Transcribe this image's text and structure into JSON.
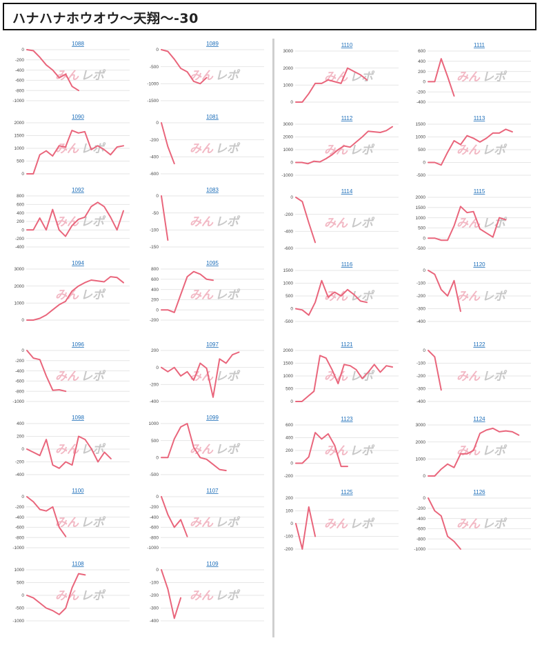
{
  "page": {
    "title": "ハナハナホウオウ〜天翔〜-30"
  },
  "watermark": {
    "part1": "みん",
    "part2": "レポ"
  },
  "colors": {
    "series": "#e9657b",
    "link": "#1a6cb8",
    "grid": "#e6e6e6"
  },
  "chart_data": [
    {
      "type": "line",
      "title": "1088",
      "ticks": [
        0,
        -200,
        -400,
        -600,
        -800,
        -1000
      ],
      "ylim": [
        -1000,
        0
      ],
      "values": [
        0,
        -20,
        -150,
        -300,
        -400,
        -550,
        -480,
        -720,
        -800
      ]
    },
    {
      "type": "line",
      "title": "1089",
      "ticks": [
        0,
        -500,
        -1000,
        -1500
      ],
      "ylim": [
        -1500,
        0
      ],
      "values": [
        0,
        -50,
        -280,
        -550,
        -650,
        -930,
        -1000,
        -820
      ]
    },
    {
      "type": "line",
      "title": "1090",
      "ticks": [
        2000,
        1500,
        1000,
        500,
        0
      ],
      "ylim": [
        0,
        2000
      ],
      "values": [
        0,
        0,
        750,
        900,
        700,
        1100,
        1050,
        1700,
        1600,
        1650,
        950,
        1100,
        950,
        750,
        1050,
        1100
      ]
    },
    {
      "type": "line",
      "title": "1081",
      "ticks": [
        0,
        -200,
        -400,
        -600
      ],
      "ylim": [
        -600,
        0
      ],
      "values": [
        0,
        -280,
        -480
      ]
    },
    {
      "type": "line",
      "title": "1092",
      "ticks": [
        800,
        600,
        400,
        200,
        0,
        -200,
        -400
      ],
      "ylim": [
        -400,
        800
      ],
      "values": [
        0,
        0,
        280,
        0,
        480,
        0,
        -150,
        100,
        250,
        300,
        550,
        650,
        550,
        300,
        0,
        450
      ]
    },
    {
      "type": "line",
      "title": "1083",
      "ticks": [
        0,
        -50,
        -100,
        -150
      ],
      "ylim": [
        -150,
        0
      ],
      "values": [
        0,
        -130
      ]
    },
    {
      "type": "line",
      "title": "1094",
      "ticks": [
        3000,
        2000,
        1000,
        0
      ],
      "ylim": [
        0,
        3000
      ],
      "values": [
        0,
        0,
        100,
        300,
        600,
        900,
        1100,
        1700,
        2000,
        2200,
        2350,
        2300,
        2250,
        2550,
        2500,
        2200
      ]
    },
    {
      "type": "line",
      "title": "1095",
      "ticks": [
        800,
        600,
        400,
        200,
        0,
        -200
      ],
      "ylim": [
        -200,
        800
      ],
      "values": [
        0,
        0,
        -50,
        300,
        650,
        750,
        700,
        600,
        580
      ]
    },
    {
      "type": "line",
      "title": "1096",
      "ticks": [
        0,
        -200,
        -400,
        -600,
        -800,
        -1000
      ],
      "ylim": [
        -1000,
        0
      ],
      "values": [
        0,
        -150,
        -180,
        -500,
        -780,
        -770,
        -800
      ]
    },
    {
      "type": "line",
      "title": "1097",
      "ticks": [
        200,
        0,
        -200,
        -400
      ],
      "ylim": [
        -400,
        200
      ],
      "values": [
        0,
        -50,
        0,
        -100,
        -50,
        -150,
        50,
        -10,
        -350,
        100,
        50,
        150,
        180
      ]
    },
    {
      "type": "line",
      "title": "1098",
      "ticks": [
        400,
        200,
        0,
        -200,
        -400
      ],
      "ylim": [
        -400,
        400
      ],
      "values": [
        0,
        -50,
        -100,
        150,
        -250,
        -300,
        -200,
        -250,
        200,
        150,
        0,
        -200,
        -50,
        -150
      ]
    },
    {
      "type": "line",
      "title": "1099",
      "ticks": [
        1000,
        500,
        0,
        -500
      ],
      "ylim": [
        -500,
        1000
      ],
      "values": [
        0,
        0,
        550,
        900,
        1000,
        300,
        0,
        -50,
        -200,
        -350,
        -380
      ]
    },
    {
      "type": "line",
      "title": "1100",
      "ticks": [
        0,
        -200,
        -400,
        -600,
        -800,
        -1000
      ],
      "ylim": [
        -1000,
        0
      ],
      "values": [
        0,
        -100,
        -250,
        -280,
        -200,
        -600,
        -780
      ]
    },
    {
      "type": "line",
      "title": "1107",
      "ticks": [
        0,
        -200,
        -400,
        -600,
        -800,
        -1000
      ],
      "ylim": [
        -1000,
        0
      ],
      "values": [
        0,
        -350,
        -600,
        -450,
        -780
      ]
    },
    {
      "type": "line",
      "title": "1108",
      "ticks": [
        1000,
        500,
        0,
        -500,
        -1000
      ],
      "ylim": [
        -1000,
        1000
      ],
      "values": [
        0,
        -100,
        -300,
        -500,
        -600,
        -750,
        -500,
        300,
        850,
        800
      ]
    },
    {
      "type": "line",
      "title": "1109",
      "ticks": [
        0,
        -100,
        -200,
        -300,
        -400
      ],
      "ylim": [
        -400,
        0
      ],
      "values": [
        0,
        -150,
        -380,
        -220
      ]
    },
    {
      "type": "line",
      "title": "1110",
      "ticks": [
        3000,
        2000,
        1000,
        0
      ],
      "ylim": [
        0,
        3000
      ],
      "values": [
        0,
        0,
        500,
        1100,
        1100,
        1300,
        1200,
        1100,
        2000,
        1800,
        1600,
        1300
      ]
    },
    {
      "type": "line",
      "title": "1111",
      "ticks": [
        600,
        400,
        200,
        0,
        -200,
        -400
      ],
      "ylim": [
        -400,
        600
      ],
      "values": [
        0,
        0,
        450,
        100,
        -280
      ]
    },
    {
      "type": "line",
      "title": "1112",
      "ticks": [
        3000,
        2000,
        1000,
        0,
        -1000
      ],
      "ylim": [
        -1000,
        3000
      ],
      "values": [
        0,
        0,
        -100,
        100,
        50,
        300,
        600,
        1000,
        1300,
        1200,
        1600,
        2000,
        2450,
        2400,
        2350,
        2500,
        2800
      ]
    },
    {
      "type": "line",
      "title": "1113",
      "ticks": [
        1500,
        1000,
        500,
        0,
        -500
      ],
      "ylim": [
        -500,
        1500
      ],
      "values": [
        0,
        0,
        -100,
        400,
        850,
        700,
        1050,
        950,
        800,
        950,
        1150,
        1150,
        1300,
        1200
      ]
    },
    {
      "type": "line",
      "title": "1114",
      "ticks": [
        0,
        -200,
        -400,
        -600
      ],
      "ylim": [
        -600,
        0
      ],
      "values": [
        0,
        -50,
        -300,
        -530
      ]
    },
    {
      "type": "line",
      "title": "1115",
      "ticks": [
        2000,
        1500,
        1000,
        500,
        0,
        -500
      ],
      "ylim": [
        -500,
        2000
      ],
      "values": [
        0,
        0,
        -100,
        -100,
        600,
        1550,
        1250,
        1300,
        450,
        250,
        50,
        1000,
        900
      ]
    },
    {
      "type": "line",
      "title": "1116",
      "ticks": [
        1500,
        1000,
        500,
        0,
        -500
      ],
      "ylim": [
        -500,
        1500
      ],
      "values": [
        0,
        -50,
        -250,
        250,
        1100,
        450,
        650,
        500,
        750,
        550,
        300,
        250
      ]
    },
    {
      "type": "line",
      "title": "1120",
      "ticks": [
        0,
        -100,
        -200,
        -300,
        -400
      ],
      "ylim": [
        -400,
        0
      ],
      "values": [
        0,
        -30,
        -150,
        -200,
        -80,
        -320
      ]
    },
    {
      "type": "line",
      "title": "1121",
      "ticks": [
        2000,
        1500,
        1000,
        500,
        0
      ],
      "ylim": [
        0,
        2000
      ],
      "values": [
        0,
        0,
        200,
        400,
        1800,
        1700,
        1250,
        700,
        1450,
        1400,
        1250,
        900,
        1150,
        1450,
        1150,
        1400,
        1350
      ]
    },
    {
      "type": "line",
      "title": "1122",
      "ticks": [
        0,
        -100,
        -200,
        -300,
        -400
      ],
      "ylim": [
        -400,
        0
      ],
      "values": [
        0,
        -50,
        -310
      ]
    },
    {
      "type": "line",
      "title": "1123",
      "ticks": [
        600,
        400,
        200,
        0,
        -200
      ],
      "ylim": [
        -200,
        600
      ],
      "values": [
        0,
        0,
        100,
        480,
        380,
        460,
        280,
        -50,
        -50
      ]
    },
    {
      "type": "line",
      "title": "1124",
      "ticks": [
        3000,
        2000,
        1000,
        0
      ],
      "ylim": [
        0,
        3000
      ],
      "values": [
        0,
        0,
        400,
        700,
        500,
        1300,
        1300,
        1500,
        2500,
        2700,
        2800,
        2600,
        2650,
        2600,
        2400
      ]
    },
    {
      "type": "line",
      "title": "1125",
      "ticks": [
        200,
        100,
        0,
        -100,
        -200
      ],
      "ylim": [
        -200,
        200
      ],
      "values": [
        0,
        -200,
        130,
        -100
      ]
    },
    {
      "type": "line",
      "title": "1126",
      "ticks": [
        0,
        -200,
        -400,
        -600,
        -800,
        -1000
      ],
      "ylim": [
        -1000,
        0
      ],
      "values": [
        0,
        -250,
        -350,
        -750,
        -850,
        -1000
      ]
    }
  ]
}
